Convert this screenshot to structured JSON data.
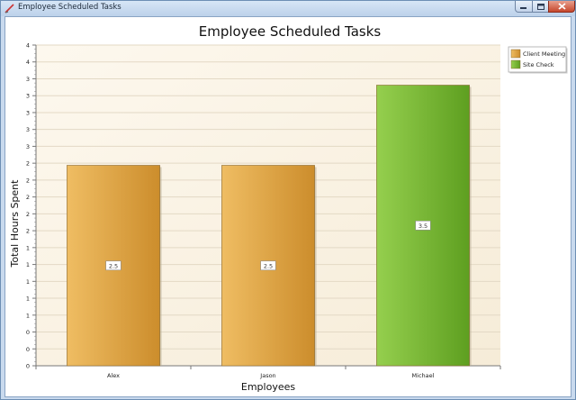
{
  "window": {
    "title": "Employee Scheduled Tasks",
    "icons": {
      "app": "chart-app-icon",
      "minimize": "minimize-icon",
      "maximize": "maximize-icon",
      "close": "close-icon"
    }
  },
  "chart_data": {
    "type": "bar",
    "title": "Employee Scheduled Tasks",
    "xlabel": "Employees",
    "ylabel": "Total Hours Spent",
    "categories": [
      "Alex",
      "Jason",
      "Michael"
    ],
    "series": [
      {
        "name": "Client Meeting",
        "color": "#e0a246",
        "values": [
          2.5,
          2.5,
          null
        ]
      },
      {
        "name": "Site Check",
        "color": "#7cbe3b",
        "values": [
          null,
          null,
          3.5
        ]
      }
    ],
    "data_labels": [
      "2.5",
      "2.5",
      "3.5"
    ],
    "ylim": [
      0,
      4
    ],
    "yticks": [
      "0",
      "0",
      "0",
      "1",
      "1",
      "1",
      "1",
      "1",
      "2",
      "2",
      "2",
      "2",
      "2",
      "3",
      "3",
      "3",
      "3",
      "3",
      "4",
      "4"
    ],
    "grid": true,
    "legend": "top-right"
  }
}
